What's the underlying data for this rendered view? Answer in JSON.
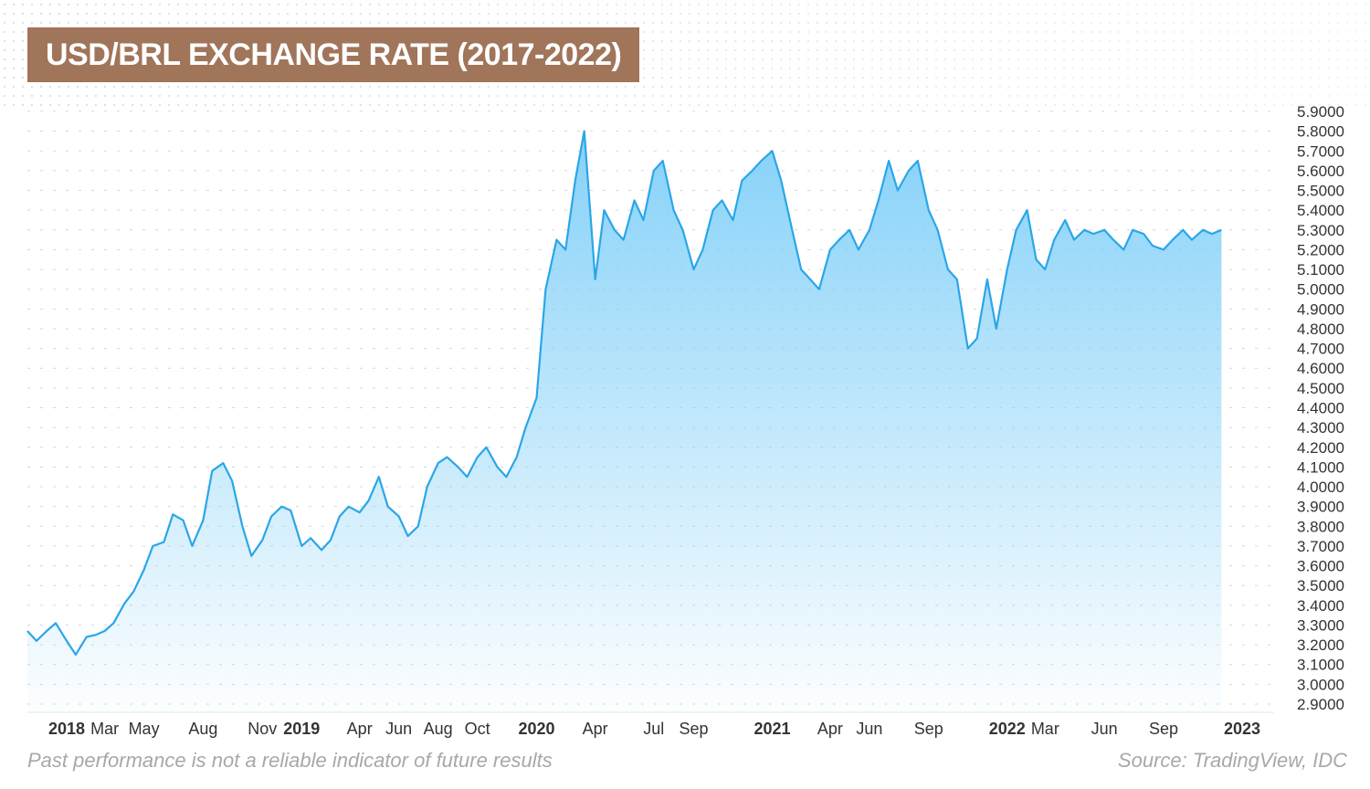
{
  "title": "USD/BRL EXCHANGE RATE (2017-2022)",
  "disclaimer": "Past performance is not a reliable indicator of future results",
  "source": "Source: TradingView, IDC",
  "colors": {
    "line": "#2aa6e8",
    "fill_top": "#7fcff8",
    "title_bg": "#a0755a",
    "grid": "#d6d6d6"
  },
  "chart_data": {
    "type": "area",
    "title": "USD/BRL EXCHANGE RATE (2017-2022)",
    "xlabel": "",
    "ylabel": "",
    "ylim": [
      2.9,
      5.9
    ],
    "y_ticks": [
      "5.9000",
      "5.8000",
      "5.7000",
      "5.6000",
      "5.5000",
      "5.4000",
      "5.3000",
      "5.2000",
      "5.1000",
      "5.0000",
      "4.9000",
      "4.8000",
      "4.7000",
      "4.6000",
      "4.5000",
      "4.4000",
      "4.3000",
      "4.2000",
      "4.1000",
      "4.0000",
      "3.9000",
      "3.8000",
      "3.7000",
      "3.6000",
      "3.5000",
      "3.4000",
      "3.3000",
      "3.2000",
      "3.1000",
      "3.0000",
      "2.9000"
    ],
    "x_range": [
      "2017-11-01",
      "2023-01-01"
    ],
    "x_ticks": [
      {
        "label": "2018",
        "date": "2018-01-01",
        "bold": true
      },
      {
        "label": "Mar",
        "date": "2018-03-01",
        "bold": false
      },
      {
        "label": "May",
        "date": "2018-05-01",
        "bold": false
      },
      {
        "label": "Aug",
        "date": "2018-08-01",
        "bold": false
      },
      {
        "label": "Nov",
        "date": "2018-11-01",
        "bold": false
      },
      {
        "label": "2019",
        "date": "2019-01-01",
        "bold": true
      },
      {
        "label": "Apr",
        "date": "2019-04-01",
        "bold": false
      },
      {
        "label": "Jun",
        "date": "2019-06-01",
        "bold": false
      },
      {
        "label": "Aug",
        "date": "2019-08-01",
        "bold": false
      },
      {
        "label": "Oct",
        "date": "2019-10-01",
        "bold": false
      },
      {
        "label": "2020",
        "date": "2020-01-01",
        "bold": true
      },
      {
        "label": "Apr",
        "date": "2020-04-01",
        "bold": false
      },
      {
        "label": "Jul",
        "date": "2020-07-01",
        "bold": false
      },
      {
        "label": "Sep",
        "date": "2020-09-01",
        "bold": false
      },
      {
        "label": "2021",
        "date": "2021-01-01",
        "bold": true
      },
      {
        "label": "Apr",
        "date": "2021-04-01",
        "bold": false
      },
      {
        "label": "Jun",
        "date": "2021-06-01",
        "bold": false
      },
      {
        "label": "Sep",
        "date": "2021-09-01",
        "bold": false
      },
      {
        "label": "2022",
        "date": "2022-01-01",
        "bold": true
      },
      {
        "label": "Mar",
        "date": "2022-03-01",
        "bold": false
      },
      {
        "label": "Jun",
        "date": "2022-06-01",
        "bold": false
      },
      {
        "label": "Sep",
        "date": "2022-09-01",
        "bold": false
      },
      {
        "label": "2023",
        "date": "2023-01-01",
        "bold": true
      }
    ],
    "grid": true,
    "legend": "none",
    "series": [
      {
        "x": [
          "2017-11-01",
          "2017-11-15",
          "2017-12-01",
          "2017-12-15",
          "2018-01-01",
          "2018-01-15",
          "2018-02-01",
          "2018-02-15",
          "2018-03-01",
          "2018-03-15",
          "2018-04-01",
          "2018-04-15",
          "2018-05-01",
          "2018-05-15",
          "2018-06-01",
          "2018-06-15",
          "2018-07-01",
          "2018-07-15",
          "2018-08-01",
          "2018-08-15",
          "2018-09-01",
          "2018-09-15",
          "2018-10-01",
          "2018-10-15",
          "2018-11-01",
          "2018-11-15",
          "2018-12-01",
          "2018-12-15",
          "2019-01-01",
          "2019-01-15",
          "2019-02-01",
          "2019-02-15",
          "2019-03-01",
          "2019-03-15",
          "2019-04-01",
          "2019-04-15",
          "2019-05-01",
          "2019-05-15",
          "2019-06-01",
          "2019-06-15",
          "2019-07-01",
          "2019-07-15",
          "2019-08-01",
          "2019-08-15",
          "2019-09-01",
          "2019-09-15",
          "2019-10-01",
          "2019-10-15",
          "2019-11-01",
          "2019-11-15",
          "2019-12-01",
          "2019-12-15",
          "2020-01-01",
          "2020-01-15",
          "2020-02-01",
          "2020-02-15",
          "2020-03-01",
          "2020-03-15",
          "2020-04-01",
          "2020-04-15",
          "2020-05-01",
          "2020-05-15",
          "2020-06-01",
          "2020-06-15",
          "2020-07-01",
          "2020-07-15",
          "2020-08-01",
          "2020-08-15",
          "2020-09-01",
          "2020-09-15",
          "2020-10-01",
          "2020-10-15",
          "2020-11-01",
          "2020-11-15",
          "2020-12-01",
          "2020-12-15",
          "2021-01-01",
          "2021-01-15",
          "2021-02-01",
          "2021-02-15",
          "2021-03-01",
          "2021-03-15",
          "2021-04-01",
          "2021-04-15",
          "2021-05-01",
          "2021-05-15",
          "2021-06-01",
          "2021-06-15",
          "2021-07-01",
          "2021-07-15",
          "2021-08-01",
          "2021-08-15",
          "2021-09-01",
          "2021-09-15",
          "2021-10-01",
          "2021-10-15",
          "2021-11-01",
          "2021-11-15",
          "2021-12-01",
          "2021-12-15",
          "2022-01-01",
          "2022-01-15",
          "2022-02-01",
          "2022-02-15",
          "2022-03-01",
          "2022-03-15",
          "2022-04-01",
          "2022-04-15",
          "2022-05-01",
          "2022-05-15",
          "2022-06-01",
          "2022-06-15",
          "2022-07-01",
          "2022-07-15",
          "2022-08-01",
          "2022-08-15",
          "2022-09-01",
          "2022-09-15",
          "2022-10-01",
          "2022-10-15",
          "2022-11-01",
          "2022-11-15",
          "2022-11-30"
        ],
        "values": [
          3.27,
          3.22,
          3.27,
          3.31,
          3.22,
          3.15,
          3.24,
          3.25,
          3.27,
          3.31,
          3.41,
          3.47,
          3.58,
          3.7,
          3.72,
          3.86,
          3.83,
          3.7,
          3.83,
          4.08,
          4.12,
          4.03,
          3.8,
          3.65,
          3.73,
          3.85,
          3.9,
          3.88,
          3.7,
          3.74,
          3.68,
          3.73,
          3.85,
          3.9,
          3.87,
          3.93,
          4.05,
          3.9,
          3.85,
          3.75,
          3.8,
          4.0,
          4.12,
          4.15,
          4.1,
          4.05,
          4.15,
          4.2,
          4.1,
          4.05,
          4.15,
          4.3,
          4.45,
          5.0,
          5.25,
          5.2,
          5.55,
          5.8,
          5.05,
          5.4,
          5.3,
          5.25,
          5.45,
          5.35,
          5.6,
          5.65,
          5.4,
          5.3,
          5.1,
          5.2,
          5.4,
          5.45,
          5.35,
          5.55,
          5.6,
          5.65,
          5.7,
          5.55,
          5.3,
          5.1,
          5.05,
          5.0,
          5.2,
          5.25,
          5.3,
          5.2,
          5.3,
          5.45,
          5.65,
          5.5,
          5.6,
          5.65,
          5.4,
          5.3,
          5.1,
          5.05,
          4.7,
          4.75,
          5.05,
          4.8,
          5.1,
          5.3,
          5.4,
          5.15,
          5.1,
          5.25,
          5.35,
          5.25,
          5.3,
          5.28,
          5.3,
          5.25,
          5.2,
          5.3,
          5.28,
          5.22,
          5.2,
          5.25,
          5.3,
          5.25,
          5.3,
          5.28,
          5.3
        ]
      }
    ]
  }
}
